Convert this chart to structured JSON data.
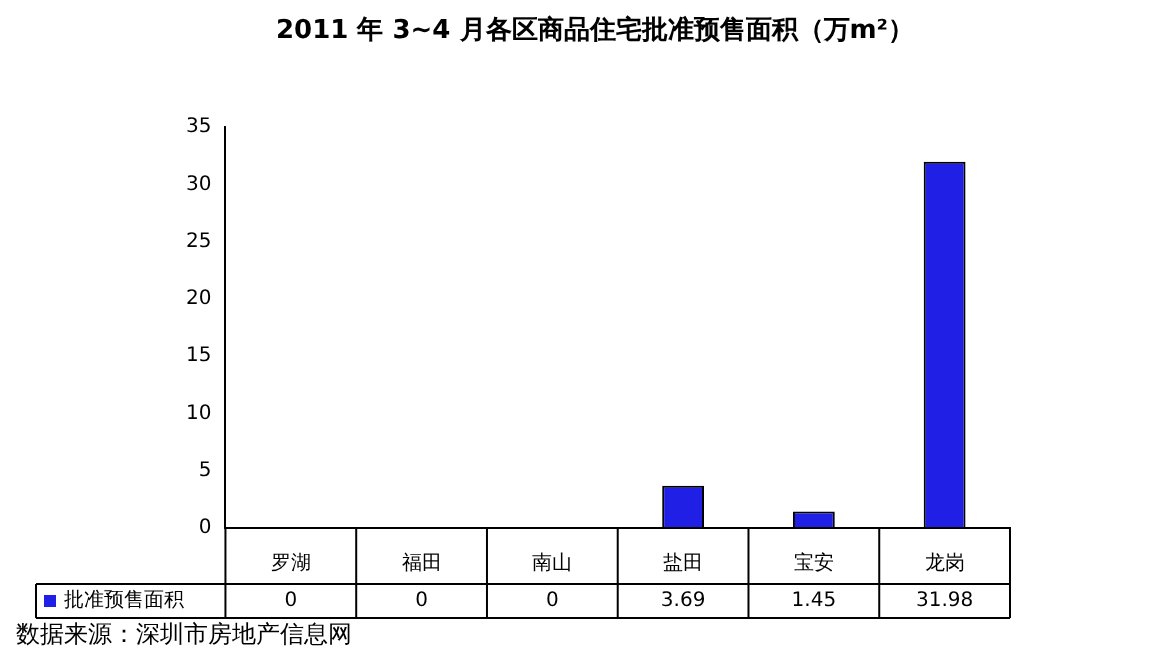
{
  "chart_data": {
    "type": "bar",
    "title": "2011 年 3~4 月各区商品住宅批准预售面积（万m²）",
    "categories": [
      "罗湖",
      "福田",
      "南山",
      "盐田",
      "宝安",
      "龙岗"
    ],
    "series": [
      {
        "name": "批准预售面积",
        "color": "#1f1fe6",
        "values": [
          0,
          0,
          0,
          3.69,
          1.45,
          31.98
        ]
      }
    ],
    "ylim": [
      0,
      35
    ],
    "yticks": [
      0,
      5,
      10,
      15,
      20,
      25,
      30,
      35
    ],
    "grid": false,
    "data_labels": true,
    "annotations": [
      "数据来源：深圳市房地产信息网"
    ]
  }
}
